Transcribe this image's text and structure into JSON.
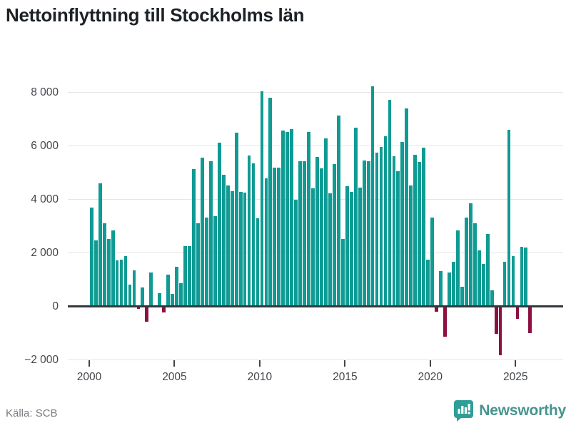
{
  "title": "Nettoinflyttning till Stockholms län",
  "source_label": "Källa: SCB",
  "brand": {
    "name": "Newsworthy",
    "icon": "newsworthy-bubble-chart-icon"
  },
  "colors": {
    "positive_bar": "#0f9b93",
    "negative_bar": "#8e1043",
    "zero_axis": "#34383c",
    "gridline": "#e4e5e6",
    "title_text": "#1d2126",
    "tick_text": "#42464b",
    "source_text": "#787d82",
    "brand_text": "#46948e",
    "brand_icon": "#2f9e96"
  },
  "chart_data": {
    "type": "bar",
    "title": "Nettoinflyttning till Stockholms län",
    "xlabel": "",
    "ylabel": "",
    "frequency": "quarterly",
    "period_start": "2000 Q1",
    "period_end": "2025 Q4",
    "grid": true,
    "legend": "none",
    "ylim": [
      -2000,
      8400
    ],
    "yticks": [
      {
        "value": 8000,
        "label": "8 000"
      },
      {
        "value": 6000,
        "label": "6 000"
      },
      {
        "value": 4000,
        "label": "4 000"
      },
      {
        "value": 2000,
        "label": "2 000"
      },
      {
        "value": 0,
        "label": "0"
      },
      {
        "value": -2000,
        "label": "−2 000"
      }
    ],
    "xticks": [
      {
        "year": 2000,
        "label": "2000"
      },
      {
        "year": 2005,
        "label": "2005"
      },
      {
        "year": 2010,
        "label": "2010"
      },
      {
        "year": 2015,
        "label": "2015"
      },
      {
        "year": 2020,
        "label": "2020"
      },
      {
        "year": 2025,
        "label": "2025"
      }
    ],
    "values": [
      3690,
      2460,
      4590,
      3110,
      2520,
      2840,
      1730,
      1750,
      1890,
      820,
      1350,
      -100,
      710,
      -580,
      1260,
      30,
      500,
      -220,
      1200,
      460,
      1490,
      870,
      2250,
      2250,
      5130,
      3110,
      5550,
      3310,
      5420,
      3380,
      6130,
      4930,
      4530,
      4310,
      6500,
      4290,
      4260,
      5650,
      5350,
      3290,
      8050,
      4790,
      7800,
      5190,
      5190,
      6580,
      6530,
      6640,
      4000,
      5440,
      5440,
      6510,
      4420,
      5600,
      5170,
      6290,
      4220,
      5310,
      7130,
      2530,
      4500,
      4270,
      6670,
      4440,
      5450,
      5440,
      8240,
      5750,
      5950,
      6370,
      7730,
      5620,
      5060,
      6150,
      7410,
      4520,
      5660,
      5410,
      5930,
      1750,
      3330,
      -200,
      1310,
      -1140,
      1280,
      1660,
      2835,
      730,
      3330,
      3860,
      3110,
      2090,
      1600,
      2710,
      610,
      -1030,
      -1820,
      1660,
      6610,
      1890,
      -470,
      2220,
      2200,
      -1000
    ]
  }
}
